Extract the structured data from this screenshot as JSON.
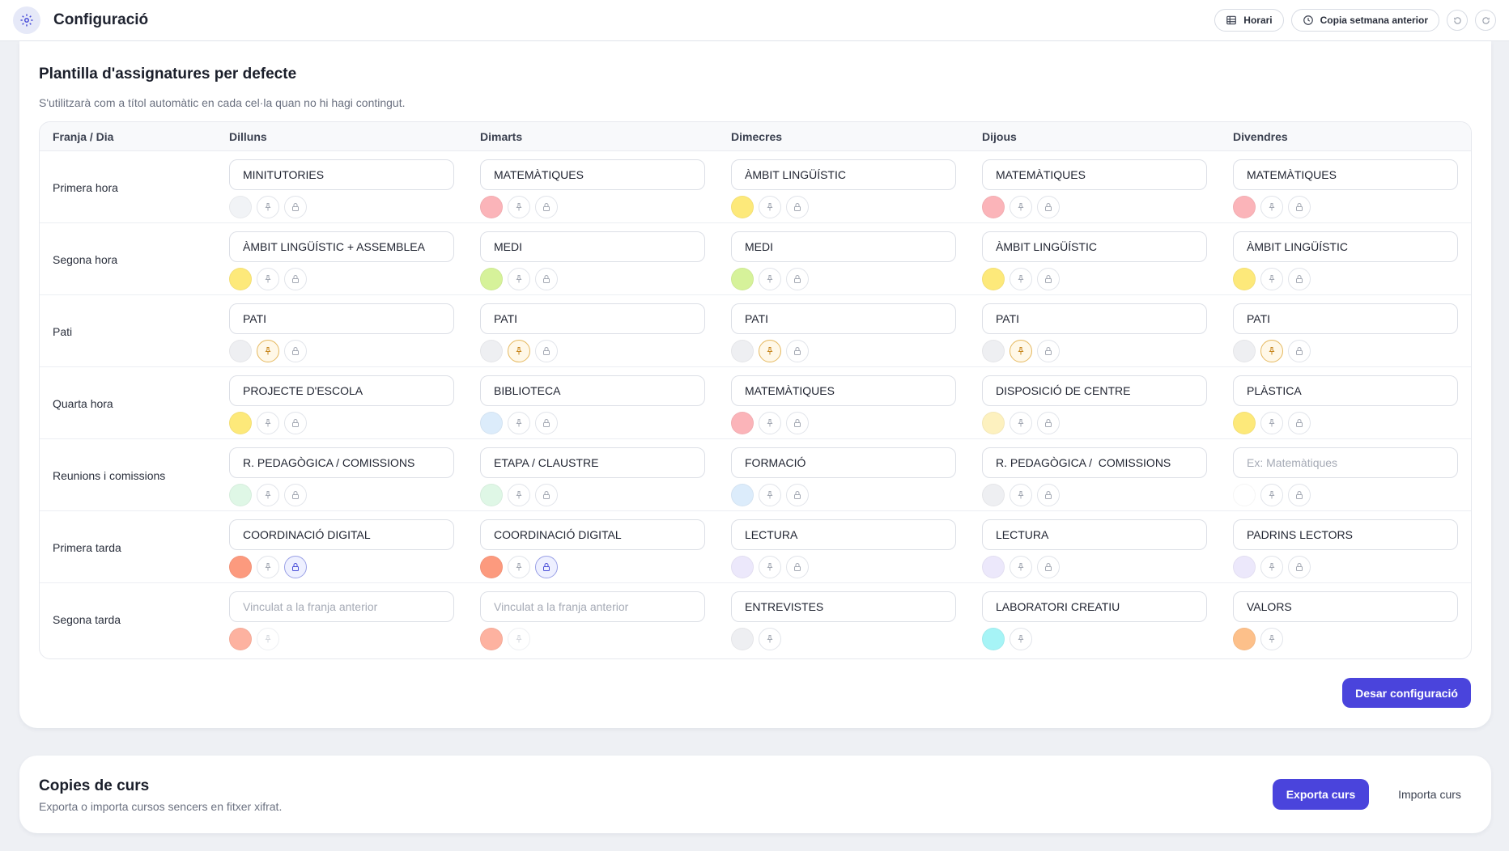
{
  "header": {
    "title": "Configuració",
    "horari_label": "Horari",
    "copy_week_label": "Copia setmana anterior"
  },
  "template": {
    "title": "Plantilla d'assignatures per defecte",
    "subtitle": "S'utilitzarà com a títol automàtic en cada cel·la quan no hi hagi contingut.",
    "corner_label": "Franja / Dia",
    "days": [
      "Dilluns",
      "Dimarts",
      "Dimecres",
      "Dijous",
      "Divendres"
    ],
    "rows": [
      {
        "label": "Primera hora",
        "cells": [
          {
            "value": "MINITUTORIES",
            "placeholder": "",
            "color": "#f1f3f6",
            "pin": "off",
            "lock": "off"
          },
          {
            "value": "MATEMÀTIQUES",
            "placeholder": "",
            "color": "#fbb4b9",
            "pin": "off",
            "lock": "off"
          },
          {
            "value": "ÀMBIT LINGÜÍSTIC",
            "placeholder": "",
            "color": "#fde97a",
            "pin": "off",
            "lock": "off"
          },
          {
            "value": "MATEMÀTIQUES",
            "placeholder": "",
            "color": "#fbb4b9",
            "pin": "off",
            "lock": "off"
          },
          {
            "value": "MATEMÀTIQUES",
            "placeholder": "",
            "color": "#fbb4b9",
            "pin": "off",
            "lock": "off"
          }
        ]
      },
      {
        "label": "Segona hora",
        "cells": [
          {
            "value": "ÀMBIT LINGÜÍSTIC + ASSEMBLEA",
            "placeholder": "",
            "color": "#fde97a",
            "pin": "off",
            "lock": "off"
          },
          {
            "value": "MEDI",
            "placeholder": "",
            "color": "#d6f29a",
            "pin": "off",
            "lock": "off"
          },
          {
            "value": "MEDI",
            "placeholder": "",
            "color": "#d6f29a",
            "pin": "off",
            "lock": "off"
          },
          {
            "value": "ÀMBIT LINGÜÍSTIC",
            "placeholder": "",
            "color": "#fde97a",
            "pin": "off",
            "lock": "off"
          },
          {
            "value": "ÀMBIT LINGÜÍSTIC",
            "placeholder": "",
            "color": "#fde97a",
            "pin": "off",
            "lock": "off"
          }
        ]
      },
      {
        "label": "Pati",
        "cells": [
          {
            "value": "PATI",
            "placeholder": "",
            "color": "#eeeff2",
            "pin": "on",
            "lock": "off"
          },
          {
            "value": "PATI",
            "placeholder": "",
            "color": "#eeeff2",
            "pin": "on",
            "lock": "off"
          },
          {
            "value": "PATI",
            "placeholder": "",
            "color": "#eeeff2",
            "pin": "on",
            "lock": "off"
          },
          {
            "value": "PATI",
            "placeholder": "",
            "color": "#eeeff2",
            "pin": "on",
            "lock": "off"
          },
          {
            "value": "PATI",
            "placeholder": "",
            "color": "#eeeff2",
            "pin": "on",
            "lock": "off"
          }
        ]
      },
      {
        "label": "Quarta hora",
        "cells": [
          {
            "value": "PROJECTE D'ESCOLA",
            "placeholder": "",
            "color": "#fde97a",
            "pin": "off",
            "lock": "off"
          },
          {
            "value": "BIBLIOTECA",
            "placeholder": "",
            "color": "#dcecfb",
            "pin": "off",
            "lock": "off"
          },
          {
            "value": "MATEMÀTIQUES",
            "placeholder": "",
            "color": "#fbb4b9",
            "pin": "off",
            "lock": "off"
          },
          {
            "value": "DISPOSICIÓ DE CENTRE",
            "placeholder": "",
            "color": "#fdf1bf",
            "pin": "off",
            "lock": "off"
          },
          {
            "value": "PLÀSTICA",
            "placeholder": "",
            "color": "#fde97a",
            "pin": "off",
            "lock": "off"
          }
        ]
      },
      {
        "label": "Reunions i comissions",
        "cells": [
          {
            "value": "R. PEDAGÒGICA / COMISSIONS",
            "placeholder": "",
            "color": "#dff7e6",
            "pin": "off",
            "lock": "off"
          },
          {
            "value": "ETAPA / CLAUSTRE",
            "placeholder": "",
            "color": "#dff7e6",
            "pin": "off",
            "lock": "off"
          },
          {
            "value": "FORMACIÓ",
            "placeholder": "",
            "color": "#dcecfb",
            "pin": "off",
            "lock": "off"
          },
          {
            "value": "R. PEDAGÒGICA /  COMISSIONS",
            "placeholder": "",
            "color": "#eeeff2",
            "pin": "off",
            "lock": "off"
          },
          {
            "value": "",
            "placeholder": "Ex: Matemàtiques",
            "color": "#ffffff",
            "pin": "off",
            "lock": "off"
          }
        ]
      },
      {
        "label": "Primera tarda",
        "cells": [
          {
            "value": "COORDINACIÓ DIGITAL",
            "placeholder": "",
            "color": "#fc9a7e",
            "pin": "off",
            "lock": "on"
          },
          {
            "value": "COORDINACIÓ DIGITAL",
            "placeholder": "",
            "color": "#fc9a7e",
            "pin": "off",
            "lock": "on"
          },
          {
            "value": "LECTURA",
            "placeholder": "",
            "color": "#ece8fb",
            "pin": "off",
            "lock": "off"
          },
          {
            "value": "LECTURA",
            "placeholder": "",
            "color": "#ece8fb",
            "pin": "off",
            "lock": "off"
          },
          {
            "value": "PADRINS LECTORS",
            "placeholder": "",
            "color": "#ece8fb",
            "pin": "off",
            "lock": "off"
          }
        ]
      },
      {
        "label": "Segona tarda",
        "cells": [
          {
            "value": "",
            "placeholder": "Vinculat a la franja anterior",
            "color": "#fdb2a0",
            "pin": "disabled",
            "lock": "none"
          },
          {
            "value": "",
            "placeholder": "Vinculat a la franja anterior",
            "color": "#fdb2a0",
            "pin": "disabled",
            "lock": "none"
          },
          {
            "value": "ENTREVISTES",
            "placeholder": "",
            "color": "#eeeff2",
            "pin": "off",
            "lock": "none"
          },
          {
            "value": "LABORATORI CREATIU",
            "placeholder": "",
            "color": "#a6f4f6",
            "pin": "off",
            "lock": "none"
          },
          {
            "value": "VALORS",
            "placeholder": "",
            "color": "#fdc08a",
            "pin": "off",
            "lock": "none"
          }
        ]
      }
    ],
    "save_label": "Desar configuració"
  },
  "copies": {
    "title": "Copies de curs",
    "subtitle": "Exporta o importa cursos sencers en fitxer xifrat.",
    "export_label": "Exporta curs",
    "import_label": "Importa curs"
  },
  "icons": {
    "app": "gear-icon",
    "horari": "table-icon",
    "copy_week": "clock-icon",
    "undo": "undo-icon",
    "redo": "redo-icon",
    "pin": "pin-icon",
    "lock": "lock-icon"
  }
}
